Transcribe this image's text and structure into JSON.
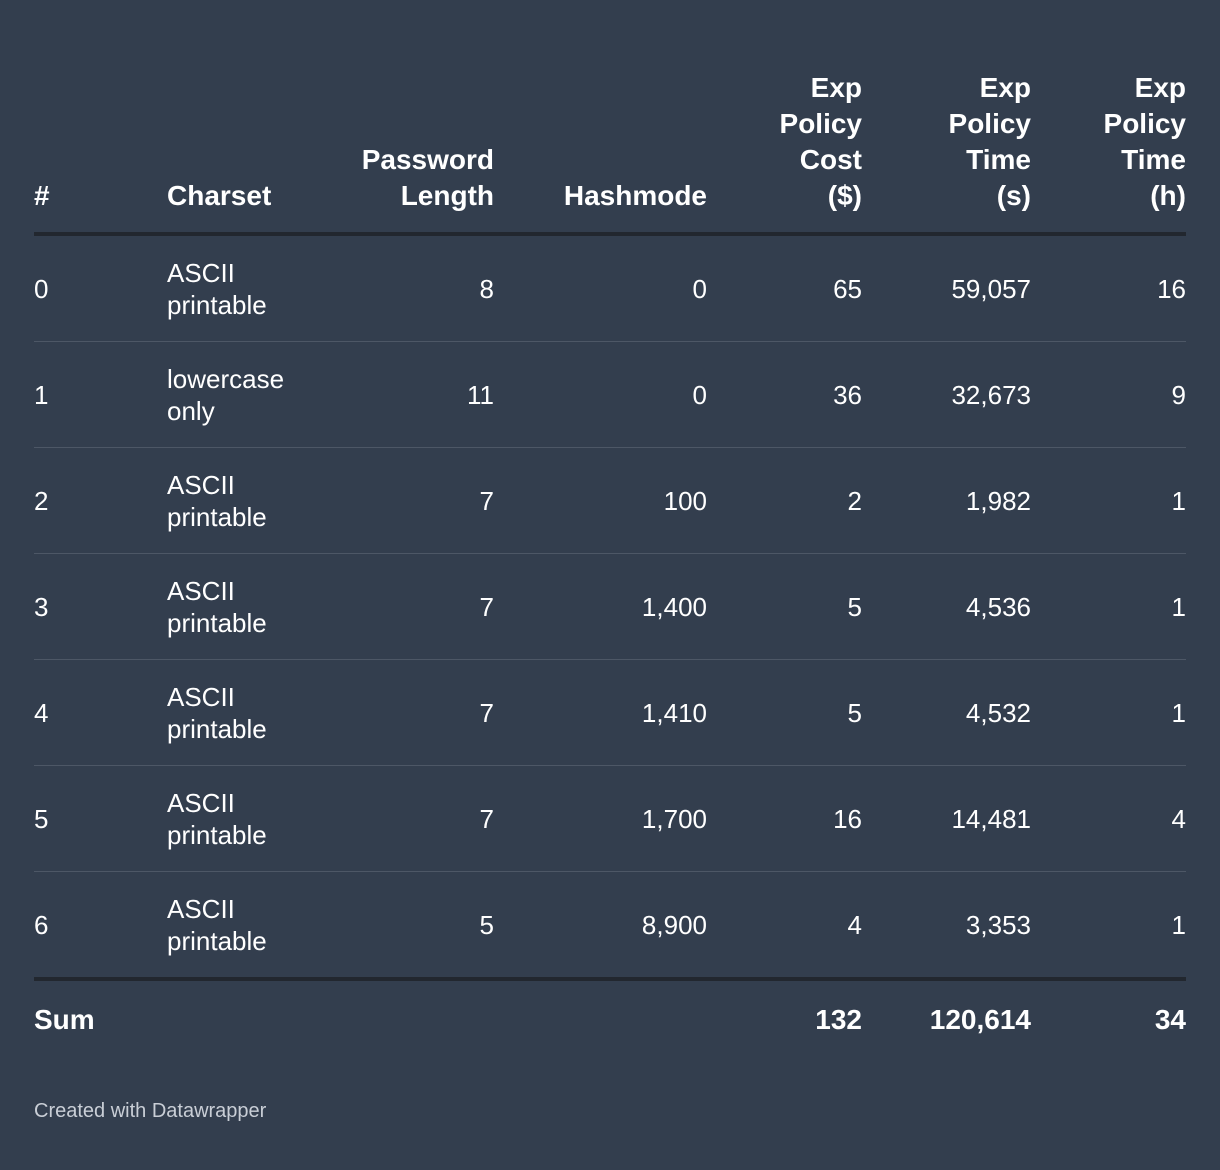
{
  "chart_data": {
    "type": "table",
    "columns": [
      "#",
      "Charset",
      "Password Length",
      "Hashmode",
      "Exp Policy Cost ($)",
      "Exp Policy Time (s)",
      "Exp Policy Time (h)"
    ],
    "column_lines": [
      [
        "#"
      ],
      [
        "Charset"
      ],
      [
        "Password",
        "Length"
      ],
      [
        "Hashmode"
      ],
      [
        "Exp",
        "Policy",
        "Cost",
        "($)"
      ],
      [
        "Exp",
        "Policy",
        "Time",
        "(s)"
      ],
      [
        "Exp",
        "Policy",
        "Time",
        "(h)"
      ]
    ],
    "rows": [
      [
        "0",
        "ASCII printable",
        "8",
        "0",
        "65",
        "59,057",
        "16"
      ],
      [
        "1",
        "lowercase only",
        "11",
        "0",
        "36",
        "32,673",
        "9"
      ],
      [
        "2",
        "ASCII printable",
        "7",
        "100",
        "2",
        "1,982",
        "1"
      ],
      [
        "3",
        "ASCII printable",
        "7",
        "1,400",
        "5",
        "4,536",
        "1"
      ],
      [
        "4",
        "ASCII printable",
        "7",
        "1,410",
        "5",
        "4,532",
        "1"
      ],
      [
        "5",
        "ASCII printable",
        "7",
        "1,700",
        "16",
        "14,481",
        "4"
      ],
      [
        "6",
        "ASCII printable",
        "5",
        "8,900",
        "4",
        "3,353",
        "1"
      ]
    ],
    "footer": [
      "Sum",
      "",
      "",
      "",
      "132",
      "120,614",
      "34"
    ]
  },
  "credit": "Created with Datawrapper",
  "colors": {
    "background": "#333e4e",
    "text": "#ffffff",
    "header_rule": "#22272f",
    "row_rule": "#4d5766",
    "credit_text": "#c9ced6"
  }
}
